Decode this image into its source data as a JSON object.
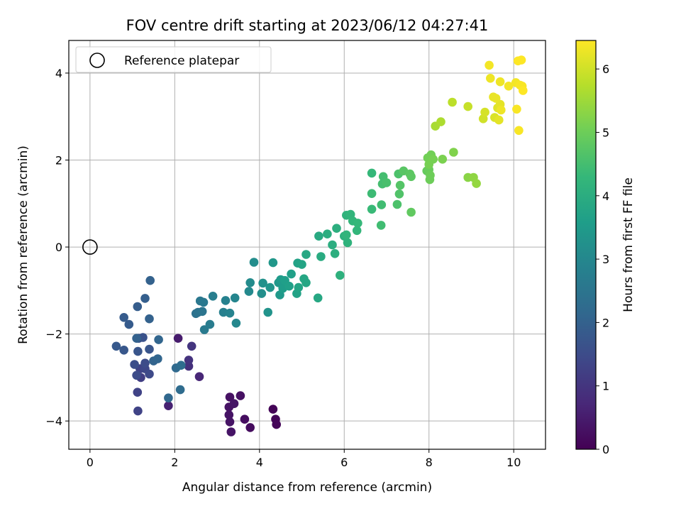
{
  "chart_data": {
    "type": "scatter",
    "title": "FOV centre drift starting at 2023/06/12 04:27:41",
    "xlabel": "Angular distance from reference (arcmin)",
    "ylabel": "Rotation from reference (arcmin)",
    "xlim": [
      -0.5,
      10.75
    ],
    "ylim": [
      -4.65,
      4.75
    ],
    "xticks": [
      0,
      2,
      4,
      6,
      8,
      10
    ],
    "yticks": [
      -4,
      -2,
      0,
      2,
      4
    ],
    "grid": true,
    "legend": {
      "placement": "top-left",
      "entries": [
        "Reference platepar"
      ]
    },
    "reference_point": {
      "x": 0,
      "y": 0,
      "label": "Reference platepar"
    },
    "colorbar": {
      "label": "Hours from first FF file",
      "range": [
        0,
        6.45
      ],
      "ticks": [
        0,
        1,
        2,
        3,
        4,
        5,
        6
      ],
      "colormap": "viridis"
    },
    "colormap_stops": [
      "#440154",
      "#482878",
      "#3e4989",
      "#31688e",
      "#26828e",
      "#1f9e89",
      "#35b779",
      "#6ece58",
      "#b5de2b",
      "#fde725"
    ],
    "series": [
      {
        "points": [
          [
            4.32,
            -3.73,
            0.05
          ],
          [
            4.38,
            -3.96,
            0.08
          ],
          [
            4.4,
            -4.08,
            0.1
          ],
          [
            3.78,
            -4.15,
            0.2
          ],
          [
            3.65,
            -3.96,
            0.22
          ],
          [
            3.55,
            -3.42,
            0.3
          ],
          [
            3.3,
            -3.45,
            0.3
          ],
          [
            3.28,
            -3.68,
            0.32
          ],
          [
            3.28,
            -3.86,
            0.33
          ],
          [
            3.3,
            -4.02,
            0.34
          ],
          [
            3.33,
            -4.25,
            0.35
          ],
          [
            3.4,
            -3.6,
            0.36
          ],
          [
            2.08,
            -2.1,
            0.5
          ],
          [
            1.85,
            -3.65,
            0.6
          ],
          [
            2.58,
            -2.98,
            0.7
          ],
          [
            2.33,
            -2.74,
            0.9
          ],
          [
            2.33,
            -2.6,
            0.95
          ],
          [
            2.4,
            -2.28,
            1.0
          ],
          [
            1.2,
            -3.0,
            1.2
          ],
          [
            1.12,
            -3.34,
            1.3
          ],
          [
            1.13,
            -3.77,
            1.3
          ],
          [
            1.18,
            -2.8,
            1.3
          ],
          [
            1.3,
            -2.8,
            1.4
          ],
          [
            1.4,
            -2.92,
            1.45
          ],
          [
            1.3,
            -2.67,
            1.5
          ],
          [
            1.05,
            -2.7,
            1.55
          ],
          [
            1.1,
            -2.95,
            1.5
          ],
          [
            1.15,
            -2.1,
            1.6
          ],
          [
            1.25,
            -2.08,
            1.65
          ],
          [
            1.4,
            -2.35,
            1.7
          ],
          [
            1.13,
            -2.4,
            1.7
          ],
          [
            0.8,
            -2.37,
            1.75
          ],
          [
            0.62,
            -2.28,
            1.8
          ],
          [
            0.92,
            -1.78,
            1.85
          ],
          [
            0.8,
            -1.62,
            1.85
          ],
          [
            1.12,
            -1.37,
            1.9
          ],
          [
            1.3,
            -1.18,
            1.95
          ],
          [
            1.42,
            -0.77,
            2.0
          ],
          [
            1.4,
            -1.65,
            2.0
          ],
          [
            1.1,
            -2.1,
            2.0
          ],
          [
            1.5,
            -2.62,
            2.05
          ],
          [
            1.6,
            -2.57,
            2.1
          ],
          [
            1.62,
            -2.13,
            2.1
          ],
          [
            1.85,
            -3.47,
            2.15
          ],
          [
            2.03,
            -2.78,
            2.2
          ],
          [
            2.13,
            -3.28,
            2.25
          ],
          [
            2.15,
            -2.72,
            2.3
          ],
          [
            2.5,
            -1.53,
            2.4
          ],
          [
            2.55,
            -1.5,
            2.45
          ],
          [
            2.65,
            -1.48,
            2.5
          ],
          [
            2.6,
            -1.24,
            2.55
          ],
          [
            2.68,
            -1.27,
            2.6
          ],
          [
            2.7,
            -1.9,
            2.65
          ],
          [
            2.83,
            -1.78,
            2.7
          ],
          [
            2.9,
            -1.13,
            2.75
          ],
          [
            3.15,
            -1.5,
            2.8
          ],
          [
            3.2,
            -1.23,
            2.85
          ],
          [
            3.3,
            -1.52,
            2.9
          ],
          [
            3.42,
            -1.17,
            2.95
          ],
          [
            3.45,
            -1.75,
            3.0
          ],
          [
            3.75,
            -1.02,
            3.05
          ],
          [
            3.78,
            -0.82,
            3.1
          ],
          [
            3.87,
            -0.35,
            3.15
          ],
          [
            4.05,
            -1.07,
            3.2
          ],
          [
            4.08,
            -0.83,
            3.25
          ],
          [
            4.2,
            -1.5,
            3.3
          ],
          [
            4.25,
            -0.93,
            3.35
          ],
          [
            4.32,
            -0.36,
            3.4
          ],
          [
            4.45,
            -0.82,
            3.4
          ],
          [
            4.48,
            -1.1,
            3.45
          ],
          [
            4.5,
            -0.75,
            3.5
          ],
          [
            4.55,
            -0.95,
            3.55
          ],
          [
            4.6,
            -0.77,
            3.6
          ],
          [
            4.7,
            -0.9,
            3.65
          ],
          [
            4.75,
            -0.62,
            3.65
          ],
          [
            4.88,
            -1.07,
            3.7
          ],
          [
            4.9,
            -0.37,
            3.7
          ],
          [
            4.92,
            -0.93,
            3.75
          ],
          [
            5.0,
            -0.4,
            3.75
          ],
          [
            5.05,
            -0.73,
            3.8
          ],
          [
            5.1,
            -0.82,
            3.8
          ],
          [
            5.1,
            -0.17,
            3.85
          ],
          [
            5.38,
            -1.17,
            3.85
          ],
          [
            5.4,
            0.25,
            3.9
          ],
          [
            5.45,
            -0.22,
            3.95
          ],
          [
            5.6,
            0.3,
            4.0
          ],
          [
            5.72,
            0.05,
            4.0
          ],
          [
            5.78,
            -0.15,
            4.05
          ],
          [
            5.82,
            0.43,
            4.05
          ],
          [
            5.9,
            -0.65,
            4.1
          ],
          [
            6.0,
            0.25,
            4.1
          ],
          [
            6.05,
            0.73,
            4.15
          ],
          [
            6.08,
            0.1,
            4.15
          ],
          [
            6.05,
            0.28,
            4.2
          ],
          [
            6.15,
            0.75,
            4.2
          ],
          [
            6.2,
            0.6,
            4.25
          ],
          [
            6.3,
            0.38,
            4.25
          ],
          [
            6.32,
            0.55,
            4.3
          ],
          [
            6.65,
            1.7,
            4.3
          ],
          [
            6.65,
            0.87,
            4.35
          ],
          [
            6.65,
            1.23,
            4.4
          ],
          [
            6.87,
            0.5,
            4.45
          ],
          [
            6.88,
            0.97,
            4.45
          ],
          [
            6.9,
            1.45,
            4.5
          ],
          [
            6.92,
            1.62,
            4.5
          ],
          [
            7.0,
            1.48,
            4.55
          ],
          [
            7.25,
            0.98,
            4.6
          ],
          [
            7.28,
            1.68,
            4.6
          ],
          [
            7.3,
            1.22,
            4.65
          ],
          [
            7.32,
            1.42,
            4.7
          ],
          [
            7.4,
            1.75,
            4.75
          ],
          [
            7.55,
            1.68,
            4.8
          ],
          [
            7.58,
            1.62,
            4.8
          ],
          [
            7.58,
            0.8,
            4.85
          ],
          [
            7.95,
            1.75,
            4.9
          ],
          [
            8.0,
            1.78,
            4.95
          ],
          [
            8.02,
            1.55,
            5.0
          ],
          [
            8.03,
            1.65,
            5.0
          ],
          [
            7.97,
            2.05,
            5.05
          ],
          [
            8.05,
            2.12,
            5.05
          ],
          [
            8.1,
            2.02,
            5.1
          ],
          [
            8.0,
            1.9,
            5.1
          ],
          [
            8.32,
            2.02,
            5.15
          ],
          [
            8.58,
            2.18,
            5.2
          ],
          [
            8.92,
            1.6,
            5.3
          ],
          [
            9.05,
            1.6,
            5.35
          ],
          [
            9.12,
            1.46,
            5.4
          ],
          [
            8.15,
            2.78,
            5.6
          ],
          [
            8.28,
            2.88,
            5.65
          ],
          [
            8.55,
            3.33,
            5.8
          ],
          [
            8.92,
            3.23,
            5.9
          ],
          [
            9.28,
            2.95,
            6.0
          ],
          [
            9.32,
            3.1,
            6.05
          ],
          [
            9.55,
            2.98,
            6.1
          ],
          [
            9.62,
            3.2,
            6.15
          ],
          [
            9.65,
            2.92,
            6.2
          ],
          [
            9.68,
            3.28,
            6.2
          ],
          [
            9.52,
            3.45,
            6.25
          ],
          [
            9.58,
            3.42,
            6.25
          ],
          [
            9.68,
            3.8,
            6.3
          ],
          [
            9.7,
            3.15,
            6.3
          ],
          [
            9.45,
            3.88,
            6.3
          ],
          [
            9.42,
            4.18,
            6.35
          ],
          [
            9.88,
            3.7,
            6.35
          ],
          [
            10.05,
            3.78,
            6.35
          ],
          [
            10.07,
            3.17,
            6.4
          ],
          [
            10.12,
            2.68,
            6.4
          ],
          [
            10.1,
            4.28,
            6.45
          ],
          [
            10.18,
            4.3,
            6.45
          ],
          [
            10.15,
            3.72,
            6.4
          ],
          [
            10.2,
            3.7,
            6.4
          ],
          [
            10.22,
            3.6,
            6.45
          ]
        ]
      }
    ]
  }
}
